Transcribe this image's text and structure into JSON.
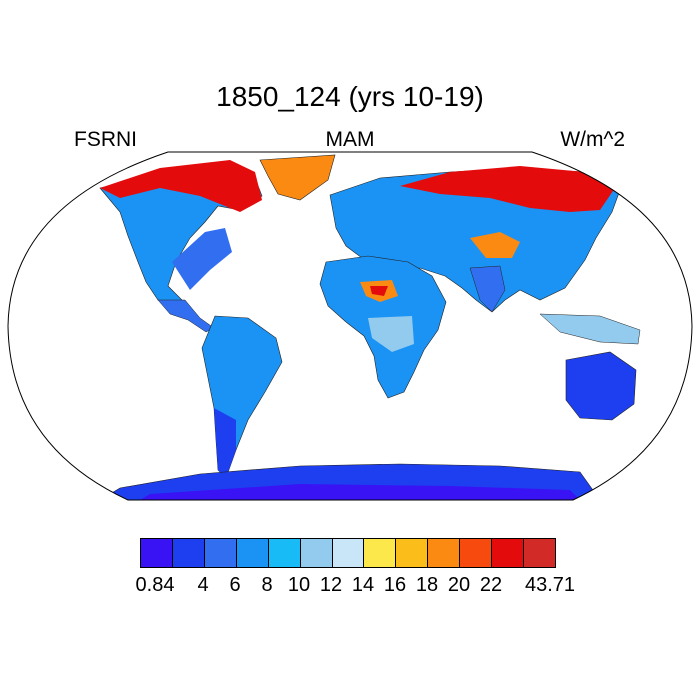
{
  "title": "1850_124 (yrs 10-19)",
  "left_label": "FSRNI",
  "center_label": "MAM",
  "right_label": "W/m^2",
  "colorbar": {
    "colors": [
      "#3a13f5",
      "#1d3ff0",
      "#316ff0",
      "#1a93f4",
      "#18bbf5",
      "#93cbee",
      "#c8e6f7",
      "#fde84c",
      "#fbbd1a",
      "#fa8a12",
      "#f64a0f",
      "#e40b0c",
      "#d22a26"
    ],
    "labels": [
      "0.84",
      "4",
      "6",
      "8",
      "10",
      "12",
      "14",
      "16",
      "18",
      "20",
      "22",
      "43.71"
    ]
  },
  "map": {
    "projection": "Robinson",
    "ocean_color": "#ffffff",
    "palette": {
      "deep": "#1d3ff0",
      "mid": "#316ff0",
      "light": "#1a93f4",
      "pale": "#93cbee",
      "warm": "#fbbd1a",
      "hot": "#e40b0c",
      "max": "#d22a26"
    }
  }
}
